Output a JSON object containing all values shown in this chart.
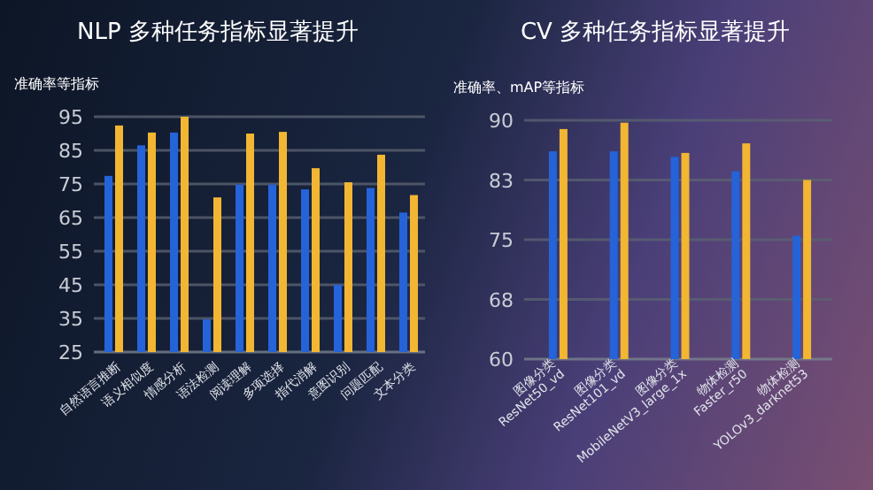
{
  "chart_data": [
    {
      "type": "bar",
      "title": "NLP 多种任务指标显著提升",
      "ylabel": "准确率等指标",
      "categories": [
        "自然语言推断",
        "语义相似度",
        "情感分析",
        "语法检测",
        "阅读理解",
        "多项选择",
        "指代消解",
        "意图识别",
        "问题匹配",
        "文本分类"
      ],
      "series": [
        {
          "color": "#2563d9",
          "values": [
            77.4,
            86.5,
            90.3,
            34.7,
            74.8,
            74.8,
            73.4,
            45.0,
            73.8,
            66.5
          ]
        },
        {
          "color": "#f2b632",
          "values": [
            92.4,
            90.3,
            95.0,
            71.0,
            90.0,
            90.5,
            79.7,
            75.5,
            83.7,
            71.7
          ]
        }
      ],
      "ylim": [
        25,
        95
      ],
      "yticks": [
        25,
        35,
        45,
        55,
        65,
        75,
        85,
        95
      ],
      "grid": "y"
    },
    {
      "type": "bar",
      "title": "CV 多种任务指标显著提升",
      "ylabel": "准确率、mAP等指标",
      "categories": [
        "图像分类\nResNet50_vd",
        "图像分类\nResNet101_vd",
        "图像分类\nMobileNetV3_large_1x",
        "物体检测\nFaster_r50",
        "物体检测\nYOLOv3_darknet53"
      ],
      "series": [
        {
          "color": "#2563d9",
          "values": [
            86.1,
            86.1,
            85.4,
            83.6,
            75.5
          ]
        },
        {
          "color": "#f2b632",
          "values": [
            88.9,
            89.7,
            85.9,
            87.1,
            82.5
          ]
        }
      ],
      "ylim": [
        60,
        90
      ],
      "yticks": [
        60,
        {
          "value": 67.5,
          "label": "68"
        },
        75,
        {
          "value": 82.5,
          "label": "83"
        },
        90
      ],
      "grid": "y"
    }
  ]
}
